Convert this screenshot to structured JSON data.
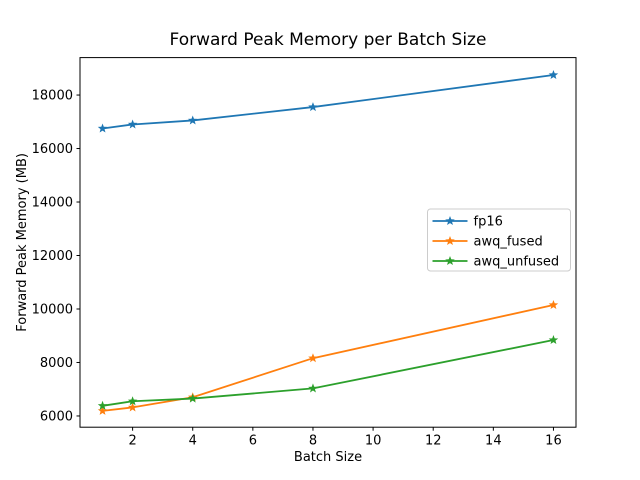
{
  "figure": {
    "background": "#ffffff"
  },
  "chart_data": {
    "type": "line",
    "title": "Forward Peak Memory per Batch Size",
    "xlabel": "Batch Size",
    "ylabel": "Forward Peak Memory (MB)",
    "x": [
      1,
      2,
      4,
      8,
      16
    ],
    "series": [
      {
        "name": "fp16",
        "color": "#1f77b4",
        "values": [
          16750,
          16900,
          17050,
          17550,
          18750
        ]
      },
      {
        "name": "awq_fused",
        "color": "#ff7f0e",
        "values": [
          6190,
          6320,
          6700,
          8160,
          10150
        ]
      },
      {
        "name": "awq_unfused",
        "color": "#2ca02c",
        "values": [
          6380,
          6550,
          6650,
          7030,
          8840
        ]
      }
    ],
    "xlim": [
      0.25,
      16.75
    ],
    "ylim": [
      5580,
      19400
    ],
    "xticks": [
      2,
      4,
      6,
      8,
      10,
      12,
      14,
      16
    ],
    "yticks": [
      6000,
      8000,
      10000,
      12000,
      14000,
      16000,
      18000
    ],
    "marker": "star",
    "grid": false,
    "legend": {
      "position": "center right",
      "border_color": "#cccccc",
      "background": "#ffffff",
      "entries": [
        "fp16",
        "awq_fused",
        "awq_unfused"
      ]
    },
    "axis_color": "#000000"
  }
}
